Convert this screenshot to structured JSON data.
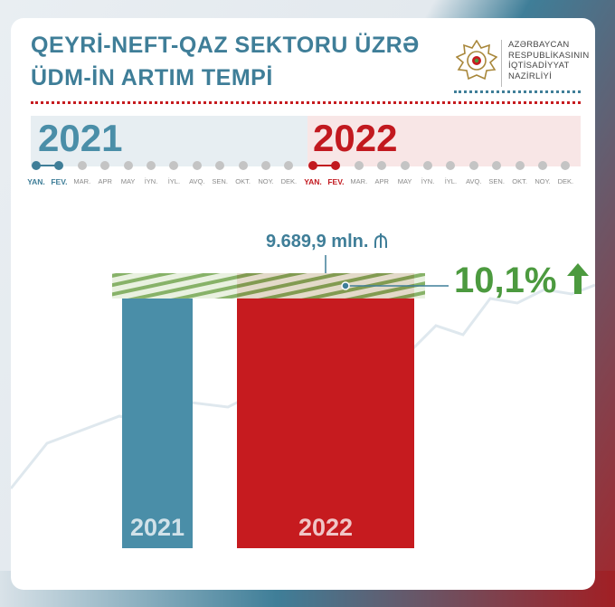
{
  "header": {
    "title_line1": "QEYRİ-NEFT-QAZ SEKTORU ÜZRƏ",
    "title_line2": "ÜDM-İN ARTIM TEMPİ"
  },
  "logo": {
    "name": "ministry-emblem-icon",
    "lines": [
      "AZƏRBAYCAN",
      "RESPUBLİKASININ",
      "İQTİSADİYYAT",
      "NAZİRLİYİ"
    ]
  },
  "timeline": {
    "year_2021": "2021",
    "year_2022": "2022",
    "months": [
      "YAN.",
      "FEV.",
      "MAR.",
      "APR",
      "MAY",
      "İYN.",
      "İYL.",
      "AVQ.",
      "SEN.",
      "OKT.",
      "NOY.",
      "DEK."
    ],
    "selected_through_month_index": 1
  },
  "chart_data": {
    "type": "bar",
    "categories": [
      "2021",
      "2022"
    ],
    "values": [
      8800,
      9689.9
    ],
    "value_label": "9.689,9 mln.",
    "currency_icon": "manat-icon",
    "growth_label": "10,1%",
    "growth_icon": "arrow-up-icon",
    "colors": {
      "2021": "#4a8ea8",
      "2022": "#c61b1f",
      "growth": "#4c9a3f"
    }
  }
}
